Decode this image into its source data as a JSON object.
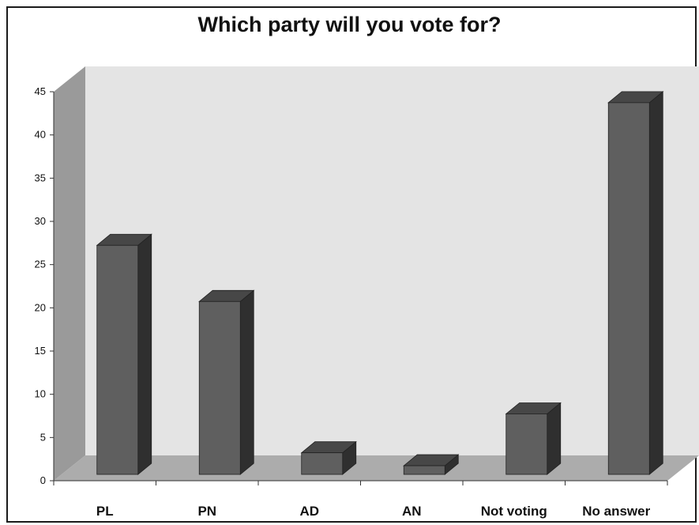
{
  "chart_data": {
    "type": "bar",
    "title": "Which party will you vote for?",
    "categories": [
      "PL",
      "PN",
      "AD",
      "AN",
      "Not voting",
      "No answer"
    ],
    "values": [
      26.5,
      20,
      2.5,
      1,
      7,
      43
    ],
    "ylim": [
      0,
      45
    ],
    "yticks": [
      "0",
      "5",
      "10",
      "15",
      "20",
      "25",
      "30",
      "35",
      "40",
      "45"
    ],
    "grid": false,
    "legend": "none",
    "three_d": true,
    "colors": {
      "bar_front": "#5f5f5f",
      "bar_top": "#474747",
      "bar_side": "#2f2f2f",
      "back_wall": "#e4e4e4",
      "side_wall": "#9a9a9a",
      "floor": "#acacac"
    }
  }
}
